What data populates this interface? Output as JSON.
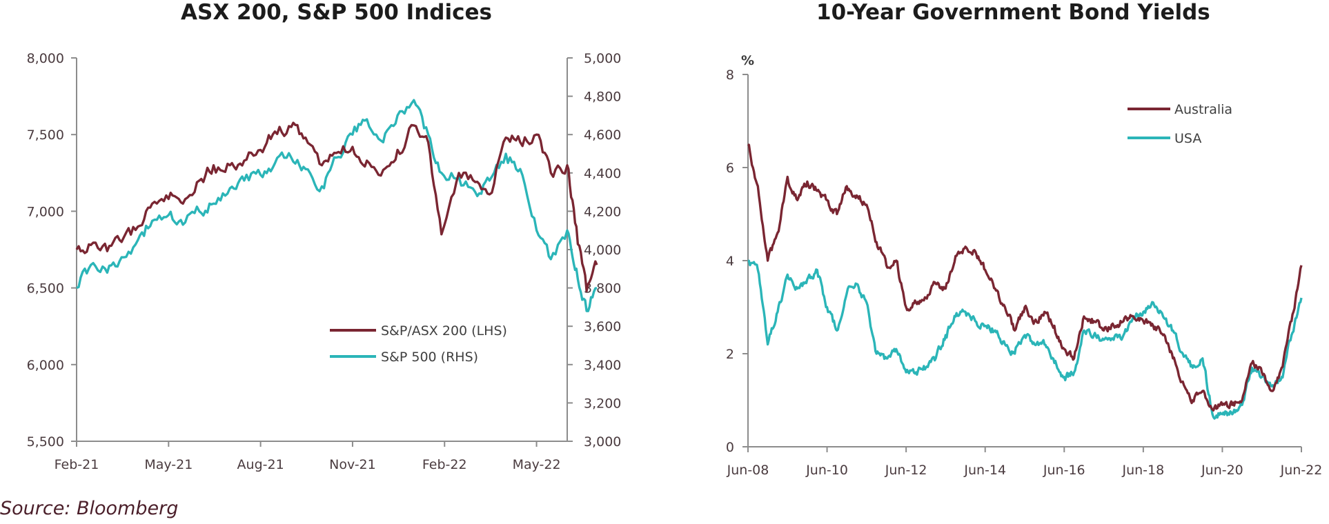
{
  "source": "Source: Bloomberg",
  "colors": {
    "maroon": "#7a2632",
    "teal": "#2bb5b8"
  },
  "chart_data": [
    {
      "type": "line",
      "title": "ASX 200, S&P 500 Indices",
      "x_ticks": [
        "Feb-21",
        "May-21",
        "Aug-21",
        "Nov-21",
        "Feb-22",
        "May-22"
      ],
      "x_range": [
        "Feb-21",
        "Jun-22"
      ],
      "y_left": {
        "ticks": [
          "5,500",
          "6,000",
          "6,500",
          "7,000",
          "7,500",
          "8,000"
        ],
        "lim": [
          5500,
          8000
        ]
      },
      "y_right": {
        "ticks": [
          "3,000",
          "3,200",
          "3,400",
          "3,600",
          "3,800",
          "4,000",
          "4,200",
          "4,400",
          "4,600",
          "4,800",
          "5,000"
        ],
        "lim": [
          3000,
          5000
        ]
      },
      "legend_position": "bottom-right",
      "grid": false,
      "series": [
        {
          "name": "S&P/ASX 200 (LHS)",
          "axis": "left",
          "color": "#7a2632",
          "x": [
            "2021-02-01",
            "2021-02-15",
            "2021-03-01",
            "2021-03-15",
            "2021-04-01",
            "2021-04-15",
            "2021-05-01",
            "2021-05-15",
            "2021-06-01",
            "2021-06-15",
            "2021-07-01",
            "2021-07-15",
            "2021-08-01",
            "2021-08-15",
            "2021-09-01",
            "2021-09-15",
            "2021-10-01",
            "2021-10-15",
            "2021-11-01",
            "2021-11-15",
            "2021-12-01",
            "2021-12-15",
            "2022-01-01",
            "2022-01-15",
            "2022-01-28",
            "2022-02-15",
            "2022-03-01",
            "2022-03-15",
            "2022-04-01",
            "2022-04-15",
            "2022-05-01",
            "2022-05-15",
            "2022-06-01",
            "2022-06-10",
            "2022-06-20",
            "2022-06-30"
          ],
          "values": [
            6750,
            6780,
            6740,
            6800,
            6900,
            7050,
            7080,
            7050,
            7200,
            7300,
            7300,
            7330,
            7400,
            7520,
            7550,
            7480,
            7300,
            7380,
            7420,
            7330,
            7270,
            7400,
            7560,
            7450,
            6850,
            7250,
            7190,
            7110,
            7480,
            7450,
            7500,
            7250,
            7300,
            6900,
            6480,
            6650
          ]
        },
        {
          "name": "S&P 500 (RHS)",
          "axis": "right",
          "color": "#2bb5b8",
          "x": [
            "2021-02-01",
            "2021-02-15",
            "2021-03-01",
            "2021-03-15",
            "2021-04-01",
            "2021-04-15",
            "2021-05-01",
            "2021-05-15",
            "2021-06-01",
            "2021-06-15",
            "2021-07-01",
            "2021-07-15",
            "2021-08-01",
            "2021-08-15",
            "2021-09-01",
            "2021-09-15",
            "2021-10-01",
            "2021-10-15",
            "2021-11-01",
            "2021-11-15",
            "2021-12-01",
            "2021-12-15",
            "2022-01-01",
            "2022-01-15",
            "2022-01-28",
            "2022-02-15",
            "2022-03-01",
            "2022-03-15",
            "2022-04-01",
            "2022-04-15",
            "2022-05-01",
            "2022-05-15",
            "2022-06-01",
            "2022-06-10",
            "2022-06-20",
            "2022-06-30"
          ],
          "values": [
            3800,
            3920,
            3880,
            3960,
            4050,
            4150,
            4180,
            4130,
            4200,
            4240,
            4320,
            4360,
            4390,
            4450,
            4480,
            4420,
            4330,
            4480,
            4600,
            4680,
            4560,
            4700,
            4780,
            4600,
            4400,
            4380,
            4300,
            4360,
            4500,
            4420,
            4100,
            3950,
            4100,
            3900,
            3680,
            3800
          ]
        }
      ]
    },
    {
      "type": "line",
      "title": "10-Year Government Bond Yields",
      "unit": "%",
      "x_ticks": [
        "Jun-08",
        "Jun-10",
        "Jun-12",
        "Jun-14",
        "Jun-16",
        "Jun-18",
        "Jun-20",
        "Jun-22"
      ],
      "x_range": [
        "Jun-08",
        "Jun-22"
      ],
      "y_ticks": [
        "0",
        "2",
        "4",
        "6",
        "8"
      ],
      "ylim": [
        0,
        8
      ],
      "legend_position": "top-right",
      "grid": false,
      "series": [
        {
          "name": "Australia",
          "color": "#7a2632",
          "x": [
            "2008-06",
            "2008-09",
            "2008-12",
            "2009-03",
            "2009-06",
            "2009-09",
            "2009-12",
            "2010-03",
            "2010-06",
            "2010-09",
            "2010-12",
            "2011-03",
            "2011-06",
            "2011-09",
            "2011-12",
            "2012-03",
            "2012-06",
            "2012-09",
            "2012-12",
            "2013-03",
            "2013-06",
            "2013-09",
            "2013-12",
            "2014-03",
            "2014-06",
            "2014-09",
            "2014-12",
            "2015-03",
            "2015-06",
            "2015-09",
            "2015-12",
            "2016-03",
            "2016-06",
            "2016-09",
            "2016-12",
            "2017-03",
            "2017-06",
            "2017-09",
            "2017-12",
            "2018-03",
            "2018-06",
            "2018-09",
            "2018-12",
            "2019-03",
            "2019-06",
            "2019-09",
            "2019-12",
            "2020-03",
            "2020-06",
            "2020-09",
            "2020-12",
            "2021-03",
            "2021-06",
            "2021-09",
            "2021-12",
            "2022-03",
            "2022-06"
          ],
          "values": [
            6.5,
            5.6,
            4.0,
            4.6,
            5.8,
            5.3,
            5.7,
            5.5,
            5.3,
            5.0,
            5.6,
            5.4,
            5.2,
            4.4,
            3.9,
            4.0,
            3.0,
            3.1,
            3.2,
            3.5,
            3.4,
            4.1,
            4.3,
            4.2,
            3.8,
            3.4,
            3.0,
            2.5,
            3.0,
            2.7,
            2.9,
            2.6,
            2.1,
            1.9,
            2.8,
            2.7,
            2.5,
            2.6,
            2.7,
            2.8,
            2.7,
            2.6,
            2.4,
            1.9,
            1.4,
            1.0,
            1.2,
            0.8,
            0.9,
            0.9,
            1.0,
            1.8,
            1.6,
            1.2,
            1.7,
            2.7,
            3.9
          ]
        },
        {
          "name": "USA",
          "color": "#2bb5b8",
          "x": [
            "2008-06",
            "2008-09",
            "2008-12",
            "2009-03",
            "2009-06",
            "2009-09",
            "2009-12",
            "2010-03",
            "2010-06",
            "2010-09",
            "2010-12",
            "2011-03",
            "2011-06",
            "2011-09",
            "2011-12",
            "2012-03",
            "2012-06",
            "2012-09",
            "2012-12",
            "2013-03",
            "2013-06",
            "2013-09",
            "2013-12",
            "2014-03",
            "2014-06",
            "2014-09",
            "2014-12",
            "2015-03",
            "2015-06",
            "2015-09",
            "2015-12",
            "2016-03",
            "2016-06",
            "2016-09",
            "2016-12",
            "2017-03",
            "2017-06",
            "2017-09",
            "2017-12",
            "2018-03",
            "2018-06",
            "2018-09",
            "2018-12",
            "2019-03",
            "2019-06",
            "2019-09",
            "2019-12",
            "2020-03",
            "2020-06",
            "2020-09",
            "2020-12",
            "2021-03",
            "2021-06",
            "2021-09",
            "2021-12",
            "2022-03",
            "2022-06"
          ],
          "values": [
            4.0,
            3.8,
            2.2,
            2.9,
            3.7,
            3.4,
            3.6,
            3.8,
            3.0,
            2.5,
            3.3,
            3.5,
            3.1,
            2.0,
            1.9,
            2.1,
            1.6,
            1.6,
            1.7,
            1.9,
            2.4,
            2.8,
            2.9,
            2.7,
            2.6,
            2.5,
            2.2,
            2.0,
            2.4,
            2.2,
            2.2,
            1.8,
            1.5,
            1.6,
            2.5,
            2.4,
            2.3,
            2.3,
            2.4,
            2.8,
            2.9,
            3.1,
            2.8,
            2.5,
            2.0,
            1.7,
            1.9,
            0.7,
            0.7,
            0.7,
            0.9,
            1.7,
            1.5,
            1.3,
            1.5,
            2.4,
            3.2
          ]
        }
      ]
    }
  ]
}
